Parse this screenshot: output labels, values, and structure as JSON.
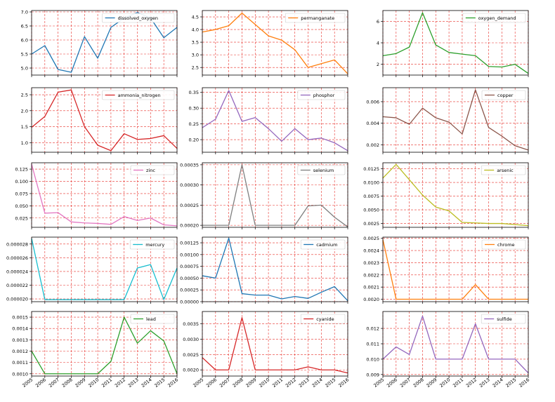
{
  "chart_data": {
    "years": [
      "2005",
      "2006",
      "2007",
      "2008",
      "2009",
      "2010",
      "2011",
      "2012",
      "2013",
      "2014",
      "2015",
      "2016"
    ],
    "panels": [
      {
        "type": "line",
        "series": [
          {
            "name": "dissolved_oxygen",
            "values": [
              5.5,
              5.8,
              4.95,
              4.85,
              6.12,
              5.35,
              6.45,
              6.78,
              6.98,
              6.78,
              6.08,
              6.45
            ]
          }
        ],
        "ylim": [
          4.75,
          7.05
        ],
        "yticks": [
          5.0,
          5.5,
          6.0,
          6.5,
          7.0
        ],
        "ytick_labels": [
          "5.0",
          "5.5",
          "6.0",
          "6.5",
          "7.0"
        ],
        "color": "#1f77b4",
        "grid": true,
        "legend": "upper right"
      },
      {
        "type": "line",
        "series": [
          {
            "name": "permanganate",
            "values": [
              3.9,
              4.0,
              4.15,
              4.65,
              4.2,
              3.75,
              3.58,
              3.2,
              2.5,
              2.65,
              2.8,
              2.25
            ]
          }
        ],
        "ylim": [
          2.2,
          4.75
        ],
        "yticks": [
          2.5,
          3.0,
          3.5,
          4.0,
          4.5
        ],
        "ytick_labels": [
          "2.5",
          "3.0",
          "3.5",
          "4.0",
          "4.5"
        ],
        "color": "#ff7f0e",
        "grid": true,
        "legend": "upper right"
      },
      {
        "type": "line",
        "series": [
          {
            "name": "oxygen_demand",
            "values": [
              2.8,
              3.0,
              3.6,
              6.8,
              3.8,
              3.1,
              2.95,
              2.8,
              1.8,
              1.75,
              2.0,
              1.15
            ]
          }
        ],
        "ylim": [
          1.0,
          7.0
        ],
        "yticks": [
          2,
          4,
          6
        ],
        "ytick_labels": [
          "2",
          "4",
          "6"
        ],
        "color": "#2ca02c",
        "grid": true,
        "legend": "upper right"
      },
      {
        "type": "line",
        "series": [
          {
            "name": "ammonia_nitrogen",
            "values": [
              1.48,
              1.82,
              2.58,
              2.65,
              1.5,
              0.92,
              0.75,
              1.28,
              1.1,
              1.13,
              1.22,
              0.82
            ]
          }
        ],
        "ylim": [
          0.7,
          2.72
        ],
        "yticks": [
          1.0,
          1.5,
          2.0,
          2.5
        ],
        "ytick_labels": [
          "1.0",
          "1.5",
          "2.0",
          "2.5"
        ],
        "color": "#d62728",
        "grid": true,
        "legend": "upper right"
      },
      {
        "type": "line",
        "series": [
          {
            "name": "phosphor",
            "values": [
              0.238,
              0.265,
              0.356,
              0.258,
              0.27,
              0.235,
              0.195,
              0.235,
              0.2,
              0.205,
              0.19,
              0.165
            ]
          }
        ],
        "ylim": [
          0.16,
          0.365
        ],
        "yticks": [
          0.2,
          0.25,
          0.3,
          0.35
        ],
        "ytick_labels": [
          "0.20",
          "0.25",
          "0.30",
          "0.35"
        ],
        "color": "#9467bd",
        "grid": true,
        "legend": "upper right"
      },
      {
        "type": "line",
        "series": [
          {
            "name": "copper",
            "values": [
              0.0046,
              0.0045,
              0.0039,
              0.0054,
              0.0045,
              0.0041,
              0.003,
              0.0071,
              0.0036,
              0.0028,
              0.0019,
              0.0015
            ]
          }
        ],
        "ylim": [
          0.0013,
          0.0073
        ],
        "yticks": [
          0.002,
          0.004,
          0.006
        ],
        "ytick_labels": [
          "0.002",
          "0.004",
          "0.006"
        ],
        "color": "#8c564b",
        "grid": true,
        "legend": "upper right"
      },
      {
        "type": "line",
        "series": [
          {
            "name": "zinc",
            "values": [
              0.135,
              0.035,
              0.036,
              0.017,
              0.015,
              0.014,
              0.012,
              0.028,
              0.02,
              0.025,
              0.011,
              0.009
            ]
          }
        ],
        "ylim": [
          0.006,
          0.138
        ],
        "yticks": [
          0.025,
          0.05,
          0.075,
          0.1,
          0.125
        ],
        "ytick_labels": [
          "0.025",
          "0.050",
          "0.075",
          "0.100",
          "0.125"
        ],
        "color": "#e377c2",
        "grid": true,
        "legend": "upper right"
      },
      {
        "type": "line",
        "series": [
          {
            "name": "selenium",
            "values": [
              0.0002,
              0.0002,
              0.0002,
              0.00035,
              0.0002,
              0.0002,
              0.0002,
              0.0002,
              0.000248,
              0.00025,
              0.00022,
              0.000196
            ]
          }
        ],
        "ylim": [
          0.000195,
          0.000355
        ],
        "yticks": [
          0.0002,
          0.00025,
          0.0003,
          0.00035
        ],
        "ytick_labels": [
          "0.00020",
          "0.00025",
          "0.00030",
          "0.00035"
        ],
        "color": "#7f7f7f",
        "grid": true,
        "legend": "upper right"
      },
      {
        "type": "line",
        "series": [
          {
            "name": "arsenic",
            "values": [
              0.0108,
              0.0133,
              0.0105,
              0.0077,
              0.0055,
              0.0048,
              0.0027,
              0.0026,
              0.0025,
              0.0025,
              0.0023,
              0.0021
            ]
          }
        ],
        "ylim": [
          0.0018,
          0.0136
        ],
        "yticks": [
          0.0025,
          0.005,
          0.0075,
          0.01,
          0.0125
        ],
        "ytick_labels": [
          "0.0025",
          "0.0050",
          "0.0075",
          "0.0100",
          "0.0125"
        ],
        "color": "#bcbd22",
        "grid": true,
        "legend": "upper right"
      },
      {
        "type": "line",
        "series": [
          {
            "name": "mercury",
            "values": [
              2.88e-05,
              1.99e-05,
              1.99e-05,
              1.99e-05,
              1.99e-05,
              1.99e-05,
              1.99e-05,
              1.99e-05,
              2.45e-05,
              2.5e-05,
              1.99e-05,
              2.45e-05
            ]
          }
        ],
        "ylim": [
          1.96e-05,
          2.9e-05
        ],
        "yticks": [
          2e-05,
          2.2e-05,
          2.4e-05,
          2.6e-05,
          2.8e-05
        ],
        "ytick_labels": [
          "0.000020",
          "0.000022",
          "0.000024",
          "0.000026",
          "0.000028"
        ],
        "color": "#17becf",
        "grid": true,
        "legend": "upper right"
      },
      {
        "type": "line",
        "series": [
          {
            "name": "cadmium",
            "values": [
              0.00055,
              0.0005,
              0.00135,
              0.00017,
              0.00014,
              0.00014,
              6e-05,
              0.00011,
              7e-05,
              0.0002,
              0.00032,
              2e-05
            ]
          }
        ],
        "ylim": [
          0.0,
          0.00137
        ],
        "yticks": [
          0.0,
          0.00025,
          0.0005,
          0.00075,
          0.001,
          0.00125
        ],
        "ytick_labels": [
          "0.00000",
          "0.00025",
          "0.00050",
          "0.00075",
          "0.00100",
          "0.00125"
        ],
        "color": "#1f77b4",
        "grid": true,
        "legend": "upper right"
      },
      {
        "type": "line",
        "series": [
          {
            "name": "chrome",
            "values": [
              0.00249,
              0.002,
              0.002,
              0.002,
              0.002,
              0.002,
              0.002,
              0.00212,
              0.002,
              0.002,
              0.002,
              0.002
            ]
          }
        ],
        "ylim": [
          0.00198,
          0.00251
        ],
        "yticks": [
          0.002,
          0.0021,
          0.0022,
          0.0023,
          0.0024,
          0.0025
        ],
        "ytick_labels": [
          "0.0020",
          "0.0021",
          "0.0022",
          "0.0023",
          "0.0024",
          "0.0025"
        ],
        "color": "#ff7f0e",
        "grid": true,
        "legend": "upper right"
      },
      {
        "type": "line",
        "series": [
          {
            "name": "lead",
            "values": [
              0.0012,
              0.001,
              0.001,
              0.001,
              0.001,
              0.001,
              0.00111,
              0.0015,
              0.00127,
              0.00138,
              0.00129,
              0.001
            ]
          }
        ],
        "ylim": [
          0.00098,
          0.00155
        ],
        "yticks": [
          0.001,
          0.0011,
          0.0012,
          0.0013,
          0.0014,
          0.0015
        ],
        "ytick_labels": [
          "0.0010",
          "0.0011",
          "0.0012",
          "0.0013",
          "0.0014",
          "0.0015"
        ],
        "color": "#2ca02c",
        "grid": true,
        "legend": "upper right"
      },
      {
        "type": "line",
        "series": [
          {
            "name": "cyanide",
            "values": [
              0.0024,
              0.002,
              0.002,
              0.0037,
              0.002,
              0.002,
              0.002,
              0.002,
              0.0021,
              0.002,
              0.002,
              0.0019
            ]
          }
        ],
        "ylim": [
          0.0018,
          0.0039
        ],
        "yticks": [
          0.002,
          0.0025,
          0.003,
          0.0035
        ],
        "ytick_labels": [
          "0.0020",
          "0.0025",
          "0.0030",
          "0.0035"
        ],
        "color": "#d62728",
        "grid": true,
        "legend": "upper right"
      },
      {
        "type": "line",
        "series": [
          {
            "name": "sulfide",
            "values": [
              0.01,
              0.0108,
              0.0103,
              0.0128,
              0.01,
              0.01,
              0.01,
              0.0123,
              0.01,
              0.01,
              0.01,
              0.0091
            ]
          }
        ],
        "ylim": [
          0.0089,
          0.0131
        ],
        "yticks": [
          0.009,
          0.01,
          0.011,
          0.012
        ],
        "ytick_labels": [
          "0.009",
          "0.010",
          "0.011",
          "0.012"
        ],
        "color": "#9467bd",
        "grid": true,
        "legend": "upper right"
      }
    ]
  }
}
